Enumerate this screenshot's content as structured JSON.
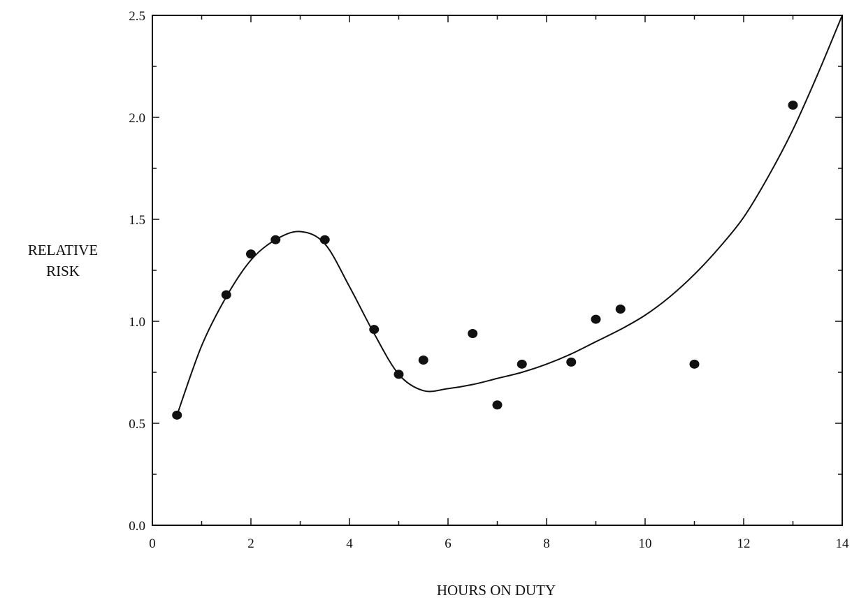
{
  "chart_data": {
    "type": "scatter",
    "title": "",
    "xlabel": "HOURS ON DUTY",
    "ylabel_lines": [
      "RELATIVE",
      "RISK"
    ],
    "xlim": [
      0,
      14
    ],
    "ylim": [
      0,
      2.5
    ],
    "x_ticks": [
      0,
      2,
      4,
      6,
      8,
      10,
      12,
      14
    ],
    "y_ticks": [
      0.0,
      0.5,
      1.0,
      1.5,
      2.0,
      2.5
    ],
    "x_tick_labels": [
      "0",
      "2",
      "4",
      "6",
      "8",
      "10",
      "12",
      "14"
    ],
    "y_tick_labels": [
      "0.0",
      "0.5",
      "1.0",
      "1.5",
      "2.0",
      "2.5"
    ],
    "grid": false,
    "legend": "none",
    "series": [
      {
        "type": "scatter",
        "x": [
          0.5,
          1.5,
          2.0,
          2.5,
          3.5,
          4.5,
          5.0,
          5.5,
          6.5,
          7.0,
          7.5,
          8.5,
          9.0,
          9.5,
          11.0,
          13.0
        ],
        "y": [
          0.54,
          1.13,
          1.33,
          1.4,
          1.4,
          0.96,
          0.74,
          0.81,
          0.94,
          0.59,
          0.79,
          0.8,
          1.01,
          1.06,
          0.79,
          2.06
        ]
      },
      {
        "type": "line",
        "x": [
          0.5,
          1.0,
          1.5,
          2.0,
          2.5,
          3.0,
          3.5,
          4.0,
          4.5,
          5.0,
          5.5,
          6.0,
          6.5,
          7.0,
          7.5,
          8.0,
          8.5,
          9.0,
          9.5,
          10.0,
          10.5,
          11.0,
          11.5,
          12.0,
          12.5,
          13.0,
          13.5,
          14.0
        ],
        "y": [
          0.54,
          0.88,
          1.12,
          1.3,
          1.4,
          1.44,
          1.38,
          1.17,
          0.94,
          0.74,
          0.66,
          0.67,
          0.69,
          0.72,
          0.75,
          0.79,
          0.84,
          0.9,
          0.96,
          1.03,
          1.12,
          1.23,
          1.36,
          1.51,
          1.71,
          1.94,
          2.21,
          2.5
        ]
      }
    ]
  }
}
